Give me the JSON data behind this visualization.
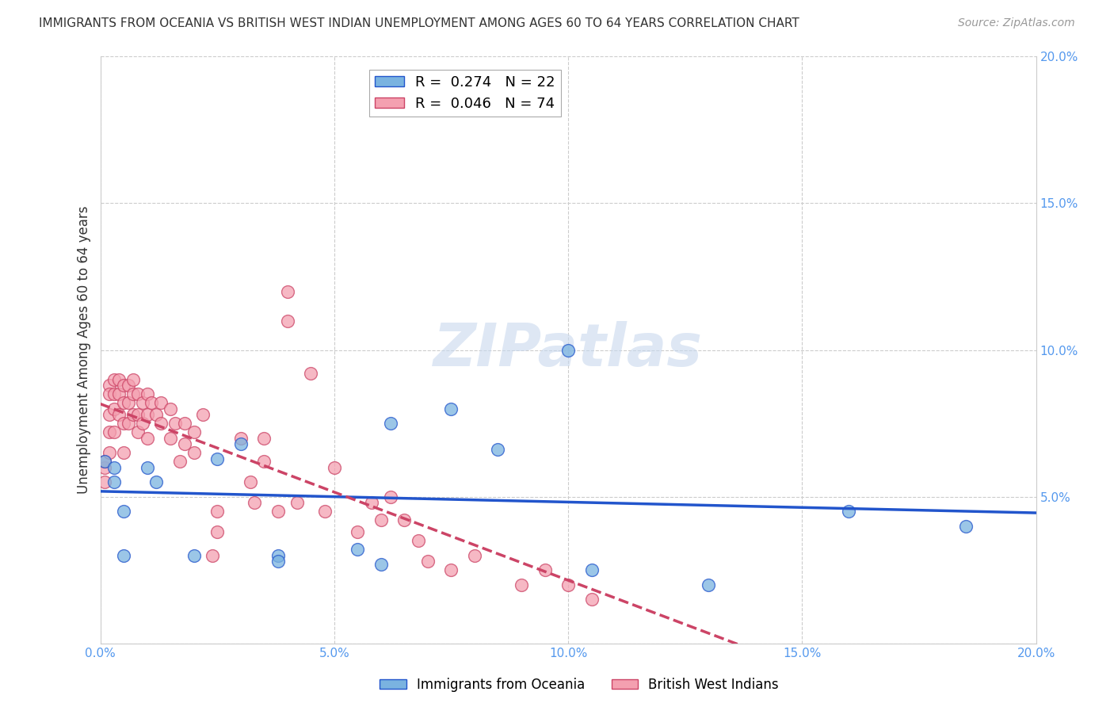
{
  "title": "IMMIGRANTS FROM OCEANIA VS BRITISH WEST INDIAN UNEMPLOYMENT AMONG AGES 60 TO 64 YEARS CORRELATION CHART",
  "source": "Source: ZipAtlas.com",
  "ylabel": "Unemployment Among Ages 60 to 64 years",
  "xlim": [
    0,
    0.2
  ],
  "ylim": [
    0,
    0.2
  ],
  "xticks": [
    0.0,
    0.05,
    0.1,
    0.15,
    0.2
  ],
  "yticks": [
    0.0,
    0.05,
    0.1,
    0.15,
    0.2
  ],
  "xtick_labels": [
    "0.0%",
    "5.0%",
    "10.0%",
    "15.0%",
    "20.0%"
  ],
  "ytick_labels_right": [
    "",
    "5.0%",
    "10.0%",
    "15.0%",
    "20.0%"
  ],
  "watermark": "ZIPatlas",
  "legend_blue_r": "R =  0.274",
  "legend_blue_n": "N = 22",
  "legend_pink_r": "R =  0.046",
  "legend_pink_n": "N = 74",
  "blue_color": "#7ab3e0",
  "pink_color": "#f4a0b0",
  "blue_line_color": "#2255cc",
  "pink_line_color": "#cc4466",
  "grid_color": "#cccccc",
  "background_color": "#ffffff",
  "blue_scatter_x": [
    0.001,
    0.003,
    0.003,
    0.005,
    0.005,
    0.01,
    0.012,
    0.02,
    0.025,
    0.03,
    0.038,
    0.038,
    0.055,
    0.06,
    0.062,
    0.075,
    0.085,
    0.1,
    0.105,
    0.13,
    0.16,
    0.185
  ],
  "blue_scatter_y": [
    0.062,
    0.06,
    0.055,
    0.045,
    0.03,
    0.06,
    0.055,
    0.03,
    0.063,
    0.068,
    0.03,
    0.028,
    0.032,
    0.027,
    0.075,
    0.08,
    0.066,
    0.1,
    0.025,
    0.02,
    0.045,
    0.04
  ],
  "pink_scatter_x": [
    0.001,
    0.001,
    0.001,
    0.002,
    0.002,
    0.002,
    0.002,
    0.002,
    0.003,
    0.003,
    0.003,
    0.003,
    0.004,
    0.004,
    0.004,
    0.005,
    0.005,
    0.005,
    0.005,
    0.006,
    0.006,
    0.006,
    0.007,
    0.007,
    0.007,
    0.008,
    0.008,
    0.008,
    0.009,
    0.009,
    0.01,
    0.01,
    0.01,
    0.011,
    0.012,
    0.013,
    0.013,
    0.015,
    0.015,
    0.016,
    0.017,
    0.018,
    0.018,
    0.02,
    0.02,
    0.022,
    0.024,
    0.025,
    0.025,
    0.03,
    0.032,
    0.033,
    0.035,
    0.035,
    0.038,
    0.04,
    0.04,
    0.042,
    0.045,
    0.048,
    0.05,
    0.055,
    0.058,
    0.06,
    0.062,
    0.065,
    0.068,
    0.07,
    0.075,
    0.08,
    0.09,
    0.095,
    0.1,
    0.105
  ],
  "pink_scatter_y": [
    0.06,
    0.062,
    0.055,
    0.088,
    0.085,
    0.078,
    0.072,
    0.065,
    0.09,
    0.085,
    0.08,
    0.072,
    0.09,
    0.085,
    0.078,
    0.088,
    0.082,
    0.075,
    0.065,
    0.088,
    0.082,
    0.075,
    0.09,
    0.085,
    0.078,
    0.085,
    0.078,
    0.072,
    0.082,
    0.075,
    0.085,
    0.078,
    0.07,
    0.082,
    0.078,
    0.082,
    0.075,
    0.08,
    0.07,
    0.075,
    0.062,
    0.068,
    0.075,
    0.072,
    0.065,
    0.078,
    0.03,
    0.038,
    0.045,
    0.07,
    0.055,
    0.048,
    0.07,
    0.062,
    0.045,
    0.12,
    0.11,
    0.048,
    0.092,
    0.045,
    0.06,
    0.038,
    0.048,
    0.042,
    0.05,
    0.042,
    0.035,
    0.028,
    0.025,
    0.03,
    0.02,
    0.025,
    0.02,
    0.015
  ]
}
